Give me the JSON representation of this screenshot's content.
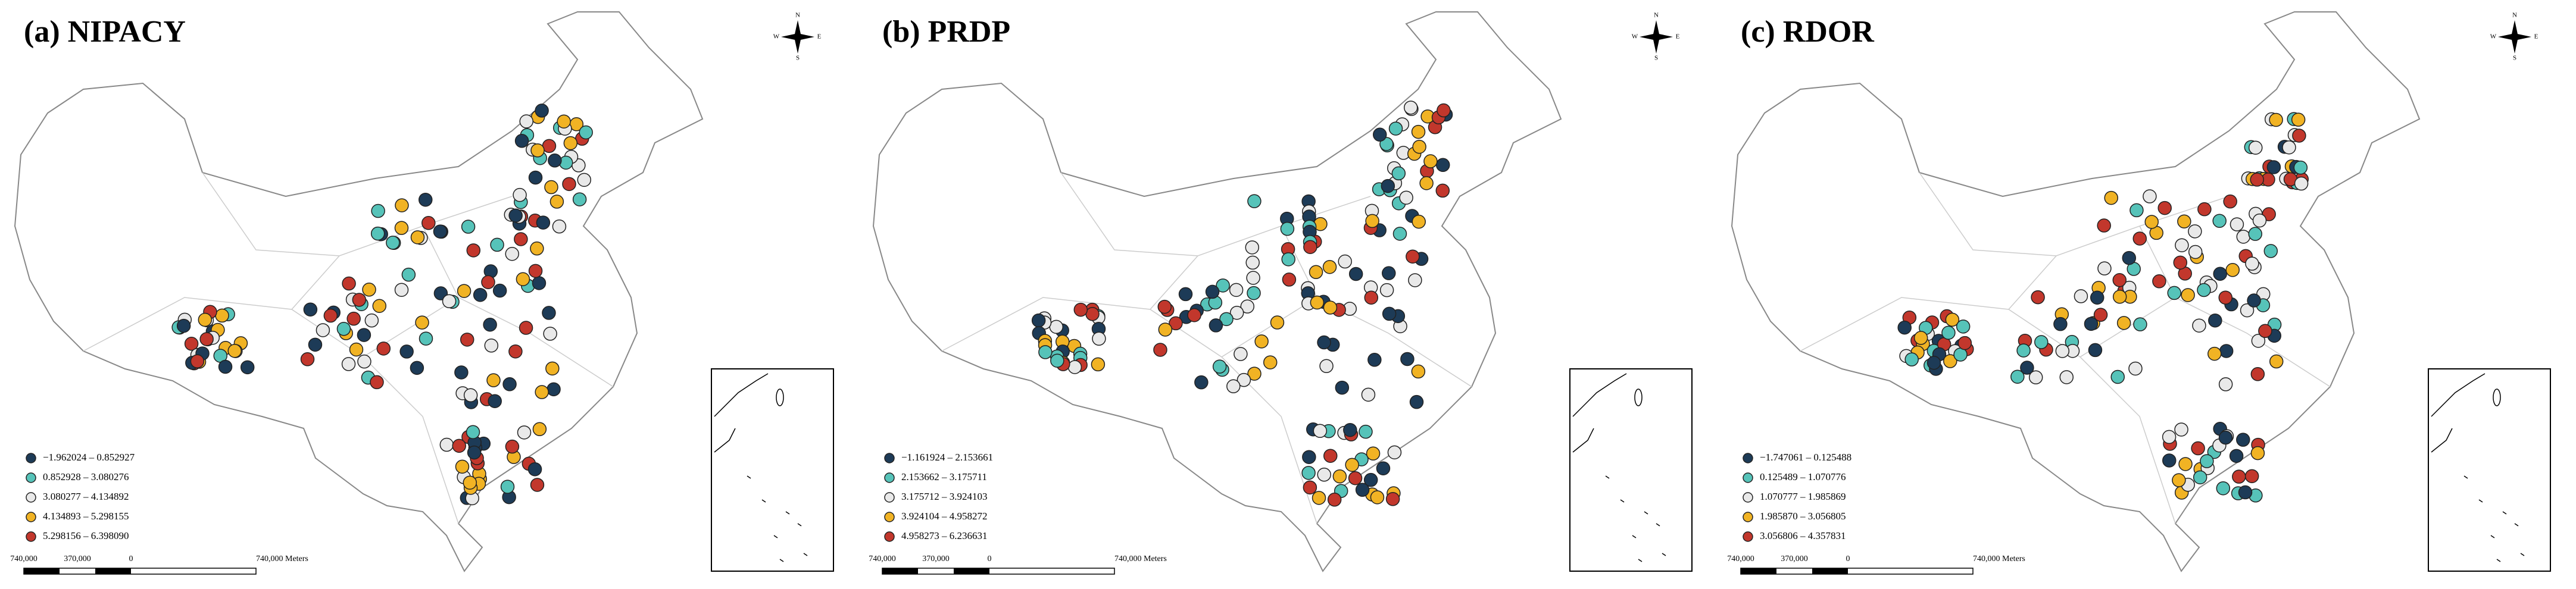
{
  "panels": [
    {
      "title": "(a) NIPACY",
      "legend": [
        {
          "label": "−1.962024 – 0.852927",
          "color": "#1d3b57"
        },
        {
          "label": "0.852928 – 3.080276",
          "color": "#56c3b9"
        },
        {
          "label": "3.080277 – 4.134892",
          "color": "#e9e9e9"
        },
        {
          "label": "4.134893 – 5.298155",
          "color": "#f1b324"
        },
        {
          "label": "5.298156 – 6.398090",
          "color": "#c2372c"
        }
      ],
      "scale_bar": [
        "740,000",
        "370,000",
        "0",
        "740,000 Meters"
      ],
      "compass": {
        "n": "N",
        "s": "S",
        "e": "E",
        "w": "W"
      }
    },
    {
      "title": "(b) PRDP",
      "legend": [
        {
          "label": "−1.161924 – 2.153661",
          "color": "#1d3b57"
        },
        {
          "label": "2.153662 – 3.175711",
          "color": "#56c3b9"
        },
        {
          "label": "3.175712 – 3.924103",
          "color": "#e9e9e9"
        },
        {
          "label": "3.924104 – 4.958272",
          "color": "#f1b324"
        },
        {
          "label": "4.958273 – 6.236631",
          "color": "#c2372c"
        }
      ],
      "scale_bar": [
        "740,000",
        "370,000",
        "0",
        "740,000 Meters"
      ],
      "compass": {
        "n": "N",
        "s": "S",
        "e": "E",
        "w": "W"
      }
    },
    {
      "title": "(c) RDOR",
      "legend": [
        {
          "label": "−1.747061 – 0.125488",
          "color": "#1d3b57"
        },
        {
          "label": "0.125489 – 1.070776",
          "color": "#56c3b9"
        },
        {
          "label": "1.070777 – 1.985869",
          "color": "#e9e9e9"
        },
        {
          "label": "1.985870 – 3.056805",
          "color": "#f1b324"
        },
        {
          "label": "3.056806 – 4.357831",
          "color": "#c2372c"
        }
      ],
      "scale_bar": [
        "740,000",
        "370,000",
        "0",
        "740,000 Meters"
      ],
      "compass": {
        "n": "N",
        "s": "S",
        "e": "E",
        "w": "W"
      }
    }
  ]
}
